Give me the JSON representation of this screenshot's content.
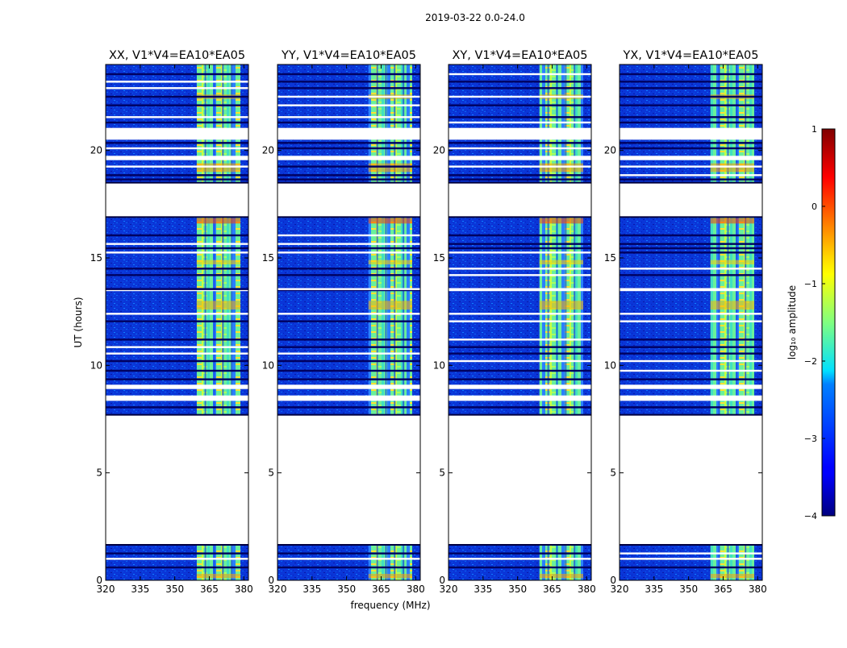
{
  "chart_data": {
    "type": "heatmap",
    "suptitle": "2019-03-22 0.0-24.0",
    "xlabel": "frequency (MHz)",
    "ylabel": "UT (hours)",
    "xlim": [
      320,
      382
    ],
    "ylim": [
      0,
      24
    ],
    "xticks": [
      320,
      335,
      350,
      365,
      380
    ],
    "yticks": [
      0,
      5,
      10,
      15,
      20
    ],
    "colormap": "jet",
    "colorbar": {
      "label": "log₁₀ amplitude",
      "range": [
        -4,
        1
      ],
      "ticks": [
        1,
        0,
        -1,
        -2,
        -3,
        -4
      ],
      "tick_labels": [
        "1",
        "0",
        "−1",
        "−2",
        "−3",
        "−4"
      ]
    },
    "bright_band_mhz": [
      359.5,
      378.5
    ],
    "flagged_time_ranges_ut": [
      [
        1.65,
        7.7
      ],
      [
        8.35,
        8.6
      ],
      [
        8.9,
        9.1
      ],
      [
        16.9,
        18.5
      ],
      [
        20.5,
        21.05
      ],
      [
        19.55,
        19.75
      ]
    ],
    "panels": [
      {
        "title": "XX, V1*V4=EA10*EA05"
      },
      {
        "title": "YY, V1*V4=EA10*EA05"
      },
      {
        "title": "XY, V1*V4=EA10*EA05"
      },
      {
        "title": "YX, V1*V4=EA10*EA05"
      }
    ]
  }
}
